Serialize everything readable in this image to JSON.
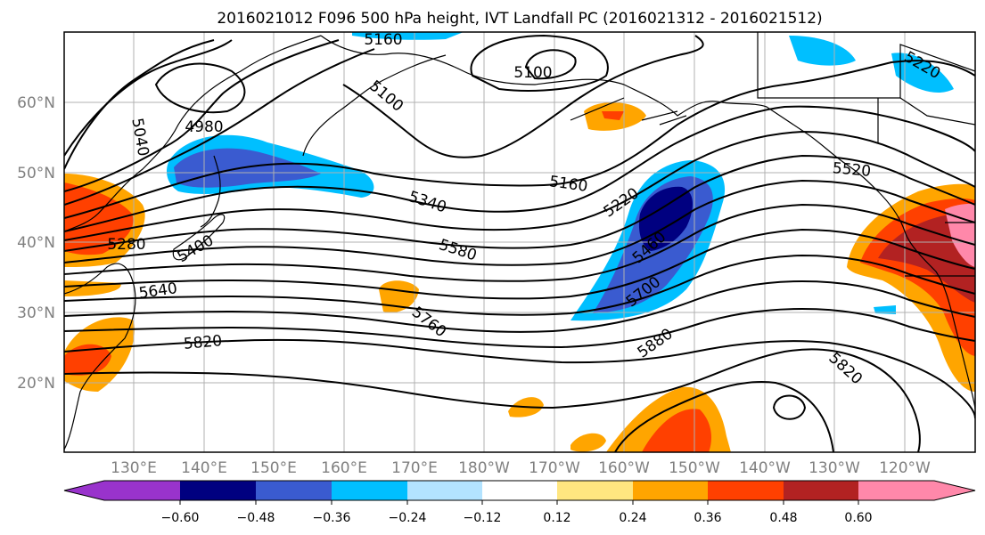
{
  "title": "2016021012 F096 500 hPa height, IVT Landfall PC (2016021312 - 2016021512)",
  "map": {
    "lat_labels": [
      "60°N",
      "50°N",
      "40°N",
      "30°N",
      "20°N"
    ],
    "lon_labels": [
      "130°E",
      "140°E",
      "150°E",
      "160°E",
      "170°E",
      "180°W",
      "170°W",
      "160°W",
      "150°W",
      "140°W",
      "130°W",
      "120°W"
    ],
    "contour_labels": [
      "5160",
      "5100",
      "5100",
      "5220",
      "5040",
      "4980",
      "5160",
      "5340",
      "5220",
      "5520",
      "5280",
      "5400",
      "5580",
      "5460",
      "5640",
      "5700",
      "5760",
      "5820",
      "5880",
      "5820"
    ]
  },
  "colorbar": {
    "ticks": [
      "−0.60",
      "−0.48",
      "−0.36",
      "−0.24",
      "−0.12",
      "0.12",
      "0.24",
      "0.36",
      "0.48",
      "0.60"
    ],
    "colors": [
      "#9933cc",
      "#000080",
      "#3a5bd0",
      "#00bfff",
      "#b3e3ff",
      "#ffffff",
      "#ffe680",
      "#ffa500",
      "#ff4000",
      "#b22222",
      "#ff88aa",
      "#ff88aa"
    ]
  }
}
